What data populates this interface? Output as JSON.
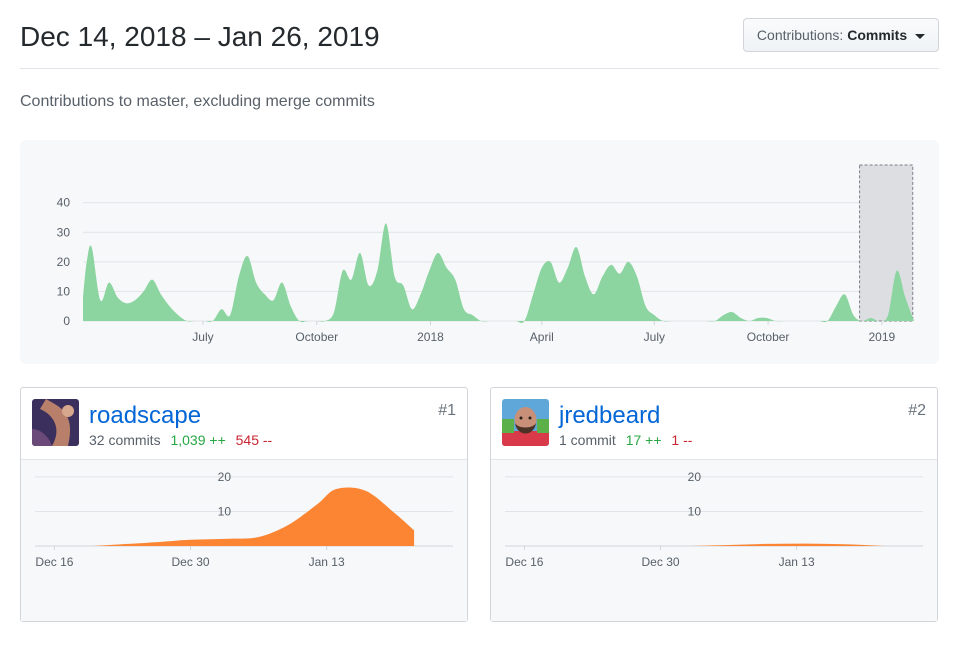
{
  "header": {
    "date_range": "Dec 14, 2018 – Jan 26, 2019",
    "contributions_label": "Contributions:",
    "contributions_value": "Commits"
  },
  "subtitle": "Contributions to master, excluding merge commits",
  "colors": {
    "area_main": "#8cd4a0",
    "area_user": "#fb8532",
    "selection": "#dcdee2",
    "link": "#0366d6"
  },
  "chart_data": [
    {
      "type": "area",
      "ylim": [
        0,
        46
      ],
      "yticks": [
        0,
        10,
        20,
        30,
        40
      ],
      "x_tick_labels": [
        {
          "label": "July",
          "x": "2017-07-01"
        },
        {
          "label": "October",
          "x": "2017-10-01"
        },
        {
          "label": "2018",
          "x": "2018-01-01"
        },
        {
          "label": "April",
          "x": "2018-04-01"
        },
        {
          "label": "July",
          "x": "2018-07-01"
        },
        {
          "label": "October",
          "x": "2018-10-01"
        },
        {
          "label": "2019",
          "x": "2019-01-01"
        }
      ],
      "x_range": [
        "2017-03-26",
        "2019-01-27"
      ],
      "selection": [
        "2018-12-14",
        "2019-01-26"
      ],
      "x": [
        "2017-03-26",
        "2017-03-29",
        "2017-04-02",
        "2017-04-09",
        "2017-04-16",
        "2017-04-23",
        "2017-04-30",
        "2017-05-07",
        "2017-05-14",
        "2017-05-21",
        "2017-05-28",
        "2017-06-04",
        "2017-06-11",
        "2017-06-18",
        "2017-06-25",
        "2017-07-02",
        "2017-07-09",
        "2017-07-16",
        "2017-07-23",
        "2017-07-30",
        "2017-08-06",
        "2017-08-13",
        "2017-08-20",
        "2017-08-27",
        "2017-09-03",
        "2017-09-10",
        "2017-09-17",
        "2017-09-24",
        "2017-10-01",
        "2017-10-08",
        "2017-10-15",
        "2017-10-22",
        "2017-10-29",
        "2017-11-05",
        "2017-11-12",
        "2017-11-19",
        "2017-11-26",
        "2017-12-03",
        "2017-12-10",
        "2017-12-17",
        "2017-12-24",
        "2017-12-31",
        "2018-01-07",
        "2018-01-14",
        "2018-01-21",
        "2018-01-28",
        "2018-02-04",
        "2018-02-11",
        "2018-02-18",
        "2018-02-25",
        "2018-03-04",
        "2018-03-11",
        "2018-03-18",
        "2018-03-25",
        "2018-04-01",
        "2018-04-08",
        "2018-04-15",
        "2018-04-22",
        "2018-04-29",
        "2018-05-06",
        "2018-05-13",
        "2018-05-20",
        "2018-05-27",
        "2018-06-03",
        "2018-06-10",
        "2018-06-17",
        "2018-06-24",
        "2018-07-01",
        "2018-07-08",
        "2018-07-15",
        "2018-07-22",
        "2018-07-29",
        "2018-08-05",
        "2018-08-12",
        "2018-08-19",
        "2018-08-26",
        "2018-09-02",
        "2018-09-09",
        "2018-09-16",
        "2018-09-23",
        "2018-09-30",
        "2018-10-07",
        "2018-10-14",
        "2018-10-21",
        "2018-10-28",
        "2018-11-04",
        "2018-11-11",
        "2018-11-18",
        "2018-11-25",
        "2018-12-02",
        "2018-12-09",
        "2018-12-16",
        "2018-12-23",
        "2018-12-30",
        "2019-01-06",
        "2019-01-13",
        "2019-01-20",
        "2019-01-27"
      ],
      "y": [
        8,
        20,
        25,
        7,
        13,
        8,
        6,
        7,
        10,
        14,
        9,
        5,
        2,
        0,
        0,
        0,
        0,
        4,
        2,
        15,
        22,
        13,
        9,
        7,
        13,
        5,
        0,
        0,
        0,
        0,
        3,
        17,
        14,
        23,
        12,
        17,
        33,
        15,
        12,
        4,
        9,
        17,
        23,
        18,
        14,
        4,
        2,
        0,
        0,
        0,
        0,
        0,
        0,
        9,
        18,
        20,
        13,
        18,
        25,
        15,
        9,
        15,
        19,
        16,
        20,
        15,
        5,
        2,
        0,
        0,
        0,
        0,
        0,
        0,
        0,
        2,
        3,
        1,
        0,
        1,
        1,
        0,
        0,
        0,
        0,
        0,
        0,
        0,
        5,
        9,
        2,
        0,
        1,
        0,
        2,
        17,
        8,
        0
      ]
    },
    {
      "type": "area",
      "user": "roadscape",
      "ylim": [
        0,
        22
      ],
      "yticks": [
        10,
        20
      ],
      "x_tick_labels": [
        {
          "label": "Dec 16",
          "x": "2018-12-16"
        },
        {
          "label": "Dec 30",
          "x": "2018-12-30"
        },
        {
          "label": "Jan 13",
          "x": "2019-01-13"
        }
      ],
      "x_range": [
        "2018-12-14",
        "2019-01-26"
      ],
      "x": [
        "2018-12-20",
        "2018-12-23",
        "2018-12-27",
        "2018-12-30",
        "2019-01-03",
        "2019-01-06",
        "2019-01-09",
        "2019-01-12",
        "2019-01-14",
        "2019-01-17",
        "2019-01-20",
        "2019-01-22"
      ],
      "y": [
        0,
        0.5,
        1.2,
        1.8,
        2.1,
        2.6,
        6,
        12,
        16.5,
        16,
        9.5,
        4.5
      ]
    },
    {
      "type": "area",
      "user": "jredbeard",
      "ylim": [
        0,
        22
      ],
      "yticks": [
        10,
        20
      ],
      "x_tick_labels": [
        {
          "label": "Dec 16",
          "x": "2018-12-16"
        },
        {
          "label": "Dec 30",
          "x": "2018-12-30"
        },
        {
          "label": "Jan 13",
          "x": "2019-01-13"
        }
      ],
      "x_range": [
        "2018-12-14",
        "2019-01-26"
      ],
      "x": [
        "2019-01-02",
        "2019-01-06",
        "2019-01-10",
        "2019-01-14",
        "2019-01-18",
        "2019-01-22"
      ],
      "y": [
        0,
        0.3,
        0.6,
        0.7,
        0.5,
        0
      ]
    }
  ],
  "contributors": [
    {
      "name": "roadscape",
      "commits": "32 commits",
      "additions": "1,039 ++",
      "deletions": "545 --",
      "rank": "#1",
      "avatar_icon": "user-avatar"
    },
    {
      "name": "jredbeard",
      "commits": "1 commit",
      "additions": "17 ++",
      "deletions": "1 --",
      "rank": "#2",
      "avatar_icon": "user-avatar"
    }
  ]
}
